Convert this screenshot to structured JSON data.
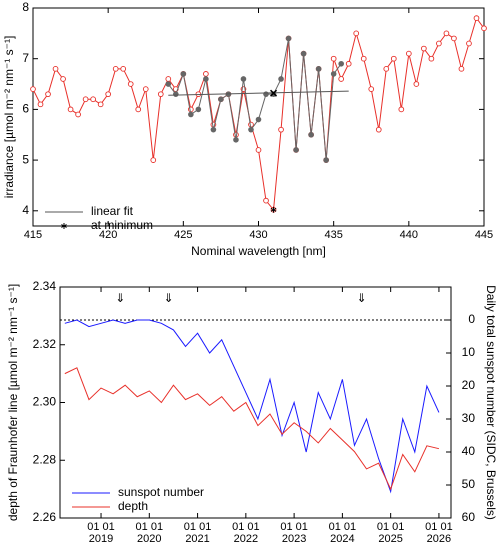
{
  "chart_data": [
    {
      "type": "line",
      "xlabel": "Nominal wavelength  [nm]",
      "ylabel": "irradiance  [µmol m⁻² nm⁻¹ s⁻¹]",
      "xlim": [
        415,
        445
      ],
      "xticks": [
        415,
        420,
        425,
        430,
        435,
        440,
        445
      ],
      "ylim": [
        3.7,
        8
      ],
      "yticks": [
        4,
        5,
        6,
        7,
        8
      ],
      "grid": false,
      "legend": "lower left",
      "series": [
        {
          "color": "#e8302a",
          "marker": "circle-open",
          "line": true,
          "x": [
            415,
            415.5,
            416,
            416.5,
            417,
            417.5,
            418,
            418.5,
            419,
            419.5,
            420,
            420.5,
            421,
            421.5,
            422,
            422.5,
            423,
            423.5,
            424,
            424.5,
            425,
            425.5,
            426,
            426.5,
            427,
            427.5,
            428,
            428.5,
            429,
            429.5,
            430,
            430.5,
            431,
            431.5,
            432,
            432.5,
            433,
            433.5,
            434,
            434.5,
            435,
            435.5,
            436,
            436.5,
            437,
            437.5,
            438,
            438.5,
            439,
            439.5,
            440,
            440.5,
            441,
            441.5,
            442,
            442.5,
            443,
            443.5,
            444,
            444.5,
            445
          ],
          "values": [
            6.4,
            6.1,
            6.3,
            6.8,
            6.6,
            6.0,
            5.9,
            6.2,
            6.2,
            6.1,
            6.3,
            6.8,
            6.8,
            6.5,
            6.0,
            6.4,
            5.0,
            6.3,
            6.6,
            6.4,
            6.7,
            6.0,
            6.3,
            6.7,
            5.7,
            6.2,
            6.3,
            5.5,
            6.4,
            5.7,
            5.2,
            4.2,
            4.02,
            5.6,
            7.4,
            5.2,
            7.1,
            5.5,
            6.8,
            5.0,
            7.0,
            6.6,
            6.9,
            7.5,
            7.0,
            6.4,
            5.6,
            6.8,
            7.0,
            6.0,
            7.1,
            6.5,
            7.2,
            7.0,
            7.3,
            7.5,
            7.4,
            6.8,
            7.3,
            7.8,
            7.6
          ]
        },
        {
          "color": "#666666",
          "marker": "dot",
          "line": true,
          "x": [
            424,
            424.5,
            425,
            425.5,
            426,
            426.5,
            427,
            427.5,
            428,
            428.5,
            429,
            429.5,
            430,
            430.5,
            431,
            431.5,
            432,
            432.5,
            433,
            433.5,
            434,
            434.5,
            435,
            435.5
          ],
          "values": [
            6.5,
            6.3,
            6.7,
            5.9,
            6.0,
            6.6,
            5.6,
            6.2,
            6.3,
            5.4,
            6.6,
            5.6,
            5.8,
            6.3,
            6.3,
            6.6,
            7.4,
            5.2,
            7.1,
            5.5,
            6.8,
            5.0,
            6.7,
            6.9
          ]
        },
        {
          "name": "linear fit",
          "color": "#555555",
          "marker": "none",
          "line": true,
          "x": [
            424,
            436
          ],
          "values": [
            6.28,
            6.36
          ]
        },
        {
          "color": "#000000",
          "marker": "cross",
          "line": false,
          "x": [
            431
          ],
          "values": [
            6.32
          ]
        },
        {
          "name": "at minimum",
          "color": "#000000",
          "marker": "star",
          "line": false,
          "x": [
            431
          ],
          "values": [
            4.02
          ]
        }
      ]
    },
    {
      "type": "line",
      "ylabel": "depth of Fraunhofer line  [µmol m⁻² nm⁻¹ s⁻¹]",
      "y2label": "Daily total sunspot number (SIDC, Brussels)",
      "xlim": [
        2018.15,
        2026.25
      ],
      "xticks": [
        {
          "value": 2019,
          "label": "01 01 2019"
        },
        {
          "value": 2020,
          "label": "01 01 2020"
        },
        {
          "value": 2021,
          "label": "01 01 2021"
        },
        {
          "value": 2022,
          "label": "01 01 2022"
        },
        {
          "value": 2023,
          "label": "01 01 2023"
        },
        {
          "value": 2024,
          "label": "01 01 2024"
        },
        {
          "value": 2025,
          "label": "01 01 2025"
        },
        {
          "value": 2026,
          "label": "01 01 2026"
        }
      ],
      "ylim": [
        2.26,
        2.34
      ],
      "yticks": [
        2.26,
        2.28,
        {
          "value": 2.3,
          "label": "2.30"
        },
        2.32,
        2.34
      ],
      "y2lim": [
        60,
        -10
      ],
      "y2ticks": [
        0,
        10,
        20,
        30,
        40,
        50,
        60
      ],
      "reference_line": {
        "axis": "y2",
        "value": 0,
        "style": "dotted"
      },
      "annotations": [
        {
          "text": "⇓",
          "x": 2019.4
        },
        {
          "text": "⇓",
          "x": 2020.4
        },
        {
          "text": "⇓",
          "x": 2024.4
        }
      ],
      "grid": false,
      "legend": "lower left",
      "series": [
        {
          "name": "sunspot number",
          "color": "#1a1aff",
          "marker": "none",
          "line": true,
          "axis": "y2",
          "x": [
            2018.25,
            2018.5,
            2018.75,
            2019,
            2019.25,
            2019.5,
            2019.75,
            2020,
            2020.25,
            2020.5,
            2020.75,
            2021,
            2021.25,
            2021.5,
            2021.75,
            2022,
            2022.25,
            2022.5,
            2022.75,
            2023,
            2023.25,
            2023.5,
            2023.75,
            2024,
            2024.25,
            2024.5,
            2024.75,
            2025,
            2025.25,
            2025.5,
            2025.75,
            2026
          ],
          "values": [
            1,
            0,
            2,
            1,
            0,
            1,
            0,
            0,
            1,
            3,
            8,
            4,
            10,
            6,
            14,
            22,
            30,
            18,
            35,
            25,
            40,
            22,
            30,
            18,
            38,
            30,
            42,
            52,
            30,
            40,
            20,
            28
          ]
        },
        {
          "name": "depth",
          "color": "#e8302a",
          "marker": "none",
          "line": true,
          "x": [
            2018.25,
            2018.5,
            2018.75,
            2019,
            2019.25,
            2019.5,
            2019.75,
            2020,
            2020.25,
            2020.5,
            2020.75,
            2021,
            2021.25,
            2021.5,
            2021.75,
            2022,
            2022.25,
            2022.5,
            2022.75,
            2023,
            2023.25,
            2023.5,
            2023.75,
            2024,
            2024.25,
            2024.5,
            2024.75,
            2025,
            2025.25,
            2025.5,
            2025.75,
            2026
          ],
          "values": [
            2.31,
            2.312,
            2.301,
            2.305,
            2.303,
            2.306,
            2.302,
            2.304,
            2.3,
            2.306,
            2.301,
            2.303,
            2.299,
            2.302,
            2.297,
            2.3,
            2.292,
            2.296,
            2.289,
            2.293,
            2.29,
            2.286,
            2.291,
            2.287,
            2.283,
            2.277,
            2.279,
            2.27,
            2.282,
            2.276,
            2.285,
            2.284
          ]
        }
      ]
    }
  ]
}
